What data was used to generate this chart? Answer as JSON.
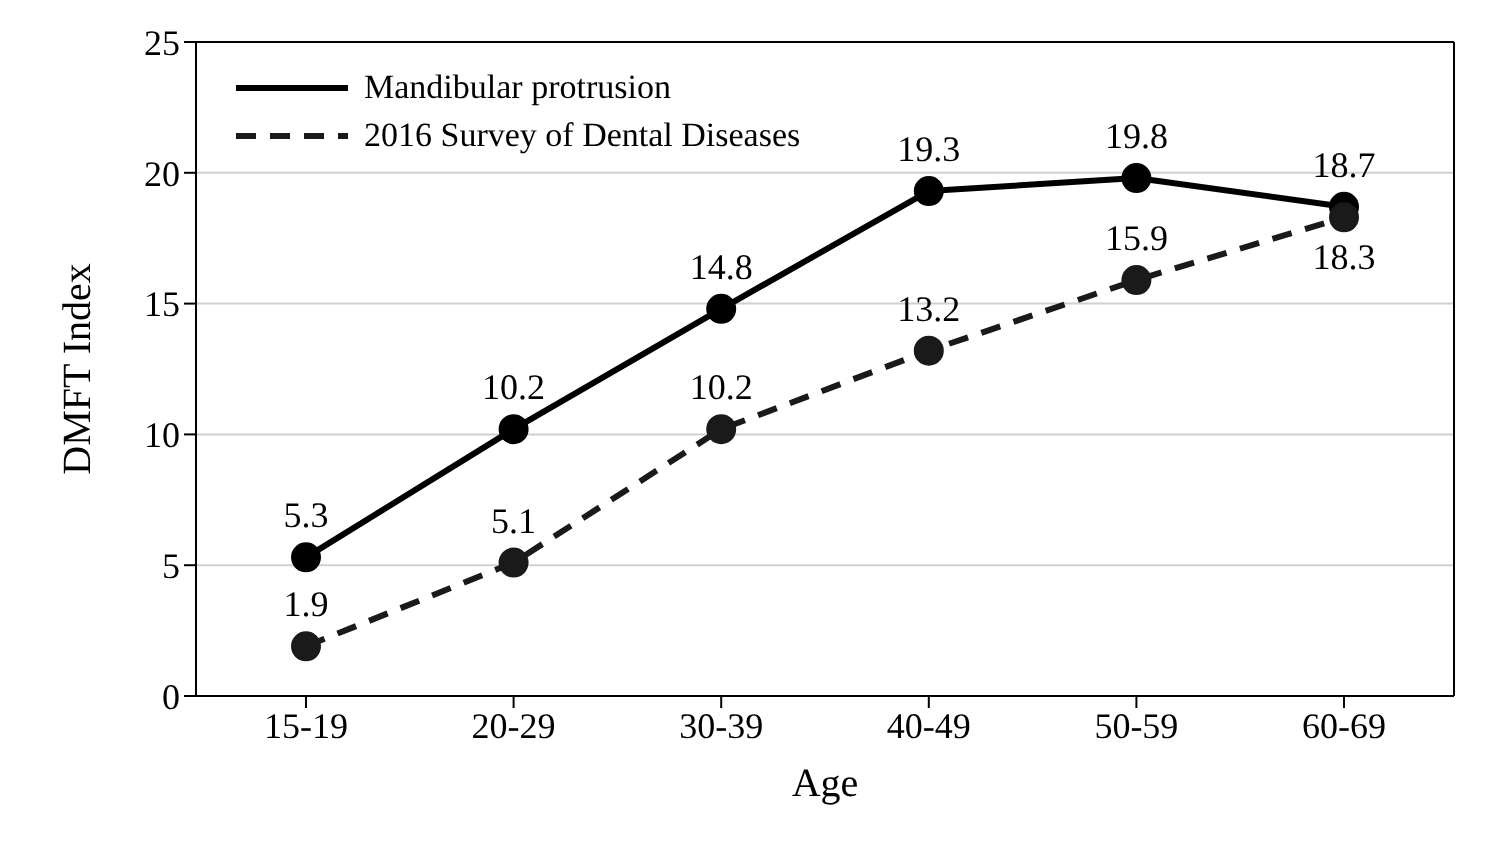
{
  "chart_data": {
    "type": "line",
    "xlabel": "Age",
    "ylabel": "DMFT Index",
    "categories": [
      "15-19",
      "20-29",
      "30-39",
      "40-49",
      "50-59",
      "60-69"
    ],
    "series": [
      {
        "name": "Mandibular protrusion",
        "color": "#000000",
        "line_style": "solid",
        "values": [
          5.3,
          10.2,
          14.8,
          19.3,
          19.8,
          18.7
        ]
      },
      {
        "name": "2016 Survey of Dental Diseases",
        "color": "#1a1a1a",
        "line_style": "dashed",
        "values": [
          1.9,
          5.1,
          10.2,
          13.2,
          15.9,
          18.3
        ]
      }
    ],
    "ylim": [
      0,
      25
    ],
    "yticks": [
      0,
      5,
      10,
      15,
      20,
      25
    ],
    "grid": "y",
    "legend": "top left",
    "marker": "circle",
    "data_labels": true
  }
}
